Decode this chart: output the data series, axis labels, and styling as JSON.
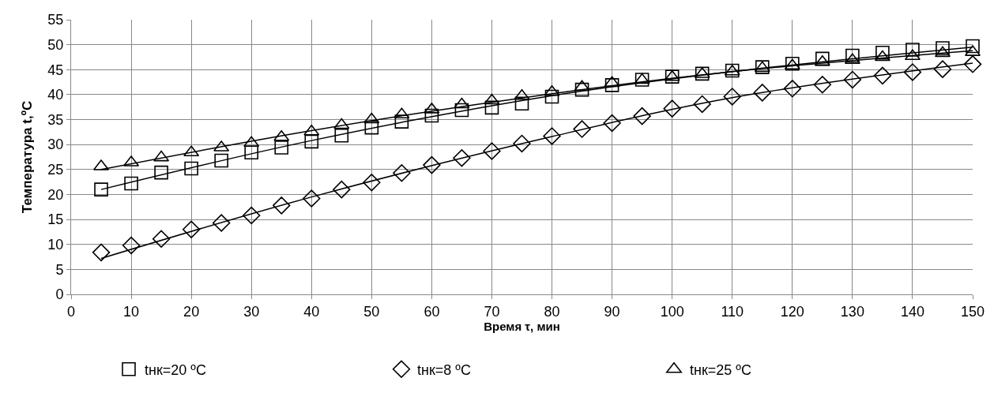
{
  "chart_data": {
    "type": "scatter",
    "xlabel": "Время τ, мин",
    "ylabel": "Температура t,ºC",
    "x": [
      5,
      10,
      15,
      20,
      25,
      30,
      35,
      40,
      45,
      50,
      55,
      60,
      65,
      70,
      75,
      80,
      85,
      90,
      95,
      100,
      105,
      110,
      115,
      120,
      125,
      130,
      135,
      140,
      145,
      150
    ],
    "series": [
      {
        "name": "tнк=20 ºC",
        "color": "#000000",
        "marker": "square",
        "values": [
          21.0,
          22.2,
          24.4,
          25.2,
          26.8,
          28.4,
          29.4,
          30.6,
          31.8,
          33.4,
          34.6,
          35.8,
          36.9,
          37.4,
          38.2,
          39.6,
          41.0,
          41.9,
          43.0,
          43.6,
          44.2,
          44.8,
          45.5,
          46.2,
          47.2,
          47.8,
          48.4,
          49.0,
          49.3,
          49.7
        ]
      },
      {
        "name": "tнк=8 ºC",
        "color": "#000000",
        "marker": "diamond",
        "values": [
          8.4,
          9.8,
          11.1,
          13.0,
          14.3,
          15.8,
          17.8,
          19.2,
          21.0,
          22.4,
          24.3,
          25.9,
          27.3,
          28.7,
          30.2,
          31.7,
          33.1,
          34.3,
          35.7,
          37.2,
          38.1,
          39.6,
          40.4,
          41.2,
          42.0,
          43.0,
          43.8,
          44.5,
          45.1,
          46.1
        ]
      },
      {
        "name": "tнк=25 ºC",
        "color": "#000000",
        "marker": "triangle",
        "values": [
          25.6,
          26.4,
          27.4,
          28.4,
          29.4,
          30.3,
          31.5,
          32.6,
          33.9,
          35.0,
          36.0,
          37.0,
          38.0,
          38.8,
          39.7,
          40.5,
          41.5,
          42.3,
          42.9,
          43.5,
          44.1,
          44.6,
          45.3,
          45.8,
          46.5,
          46.9,
          47.5,
          47.7,
          48.3,
          48.5
        ]
      },
      {
        "type": "line",
        "color": "#000000",
        "marker": "none",
        "x": [
          5,
          40,
          80,
          110,
          150
        ],
        "values": [
          21.0,
          30.8,
          39.8,
          44.6,
          49.5
        ]
      },
      {
        "type": "line",
        "color": "#000000",
        "marker": "none",
        "x": [
          5,
          40,
          80,
          110,
          150
        ],
        "values": [
          7.2,
          19.5,
          31.6,
          39.4,
          46.3
        ]
      },
      {
        "type": "line",
        "color": "#000000",
        "marker": "none",
        "x": [
          5,
          40,
          80,
          110,
          150
        ],
        "values": [
          25.0,
          32.8,
          40.2,
          44.6,
          48.8
        ]
      }
    ],
    "xlim": [
      0,
      150
    ],
    "xticks": [
      0,
      10,
      20,
      30,
      40,
      50,
      60,
      70,
      80,
      90,
      100,
      110,
      120,
      130,
      140,
      150
    ],
    "ylim": [
      0,
      55
    ],
    "yticks": [
      0,
      5,
      10,
      15,
      20,
      25,
      30,
      35,
      40,
      45,
      50,
      55
    ],
    "grid": true,
    "legend": "bottom"
  }
}
